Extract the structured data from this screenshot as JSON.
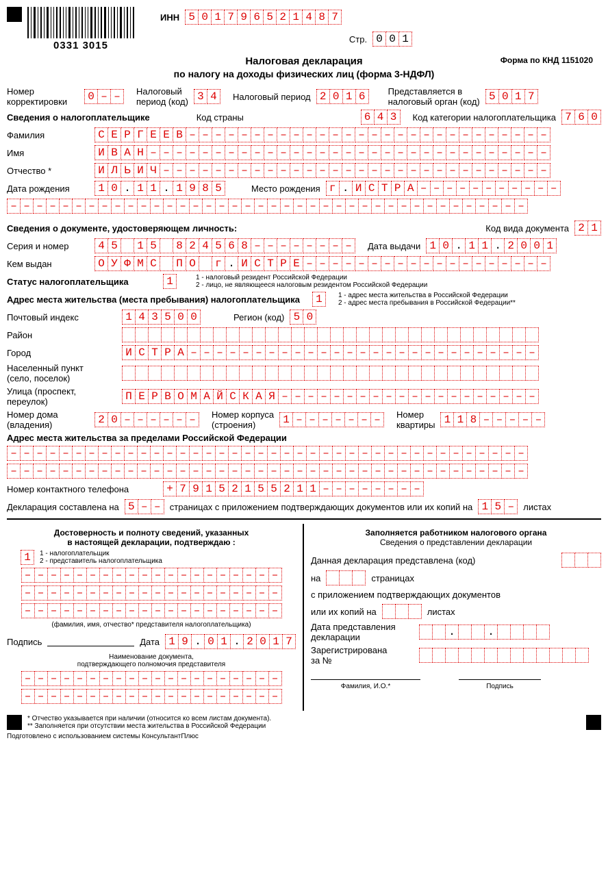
{
  "colors": {
    "ink": "#000000",
    "red": "#dd0000",
    "bg": "#ffffff"
  },
  "barcode_number": "0331 3015",
  "inn_label": "ИНН",
  "inn": [
    "5",
    "0",
    "1",
    "7",
    "9",
    "6",
    "5",
    "2",
    "1",
    "4",
    "8",
    "7"
  ],
  "page_label": "Стр.",
  "page": [
    "0",
    "0",
    "1"
  ],
  "knd": "Форма по КНД 1151020",
  "title1": "Налоговая декларация",
  "title2": "по налогу на доходы физических лиц (форма 3-НДФЛ)",
  "row1": {
    "corr_label": "Номер\nкорректировки",
    "corr": [
      "0",
      "–",
      "–"
    ],
    "period_code_label": "Налоговый\nпериод (код)",
    "period_code": [
      "3",
      "4"
    ],
    "period_label": "Налоговый период",
    "period": [
      "2",
      "0",
      "1",
      "6"
    ],
    "organ_label": "Представляется в\nналоговый орган (код)",
    "organ": [
      "5",
      "0",
      "1",
      "7"
    ]
  },
  "taxpayer_info_label": "Сведения о налогоплательщике",
  "country_code_label": "Код страны",
  "country_code": [
    "6",
    "4",
    "3"
  ],
  "category_label": "Код категории налогоплательщика",
  "category": [
    "7",
    "6",
    "0"
  ],
  "surname_label": "Фамилия",
  "surname": [
    "С",
    "Е",
    "Р",
    "Г",
    "Е",
    "Е",
    "В",
    "–",
    "–",
    "–",
    "–",
    "–",
    "–",
    "–",
    "–",
    "–",
    "–",
    "–",
    "–",
    "–",
    "–",
    "–",
    "–",
    "–",
    "–",
    "–",
    "–",
    "–",
    "–",
    "–",
    "–",
    "–",
    "–",
    "–",
    "–"
  ],
  "name_label": "Имя",
  "name": [
    "И",
    "В",
    "А",
    "Н",
    "–",
    "–",
    "–",
    "–",
    "–",
    "–",
    "–",
    "–",
    "–",
    "–",
    "–",
    "–",
    "–",
    "–",
    "–",
    "–",
    "–",
    "–",
    "–",
    "–",
    "–",
    "–",
    "–",
    "–",
    "–",
    "–",
    "–",
    "–",
    "–",
    "–",
    "–"
  ],
  "patr_label": "Отчество *",
  "patr": [
    "И",
    "Л",
    "Ь",
    "И",
    "Ч",
    "–",
    "–",
    "–",
    "–",
    "–",
    "–",
    "–",
    "–",
    "–",
    "–",
    "–",
    "–",
    "–",
    "–",
    "–",
    "–",
    "–",
    "–",
    "–",
    "–",
    "–",
    "–",
    "–",
    "–",
    "–",
    "–",
    "–",
    "–",
    "–",
    "–"
  ],
  "dob_label": "Дата рождения",
  "dob": [
    "1",
    "0",
    ".",
    "1",
    "1",
    ".",
    "1",
    "9",
    "8",
    "5"
  ],
  "pob_label": "Место рождения",
  "pob": [
    "г",
    ".",
    "И",
    "С",
    "Т",
    "Р",
    "А",
    "–",
    "–",
    "–",
    "–",
    "–",
    "–",
    "–",
    "–",
    "–",
    "–",
    "–"
  ],
  "pob2": [
    "–",
    "–",
    "–",
    "–",
    "–",
    "–",
    "–",
    "–",
    "–",
    "–",
    "–",
    "–",
    "–",
    "–",
    "–",
    "–",
    "–",
    "–",
    "–",
    "–",
    "–",
    "–",
    "–",
    "–",
    "–",
    "–",
    "–",
    "–",
    "–",
    "–",
    "–",
    "–",
    "–",
    "–",
    "–",
    "–",
    "–",
    "–",
    "–",
    "–"
  ],
  "doc_section_label": "Сведения о документе, удостоверяющем личность:",
  "doc_type_label": "Код вида документа",
  "doc_type": [
    "2",
    "1"
  ],
  "serial_label": "Серия и номер",
  "serial": [
    "4",
    "5",
    "",
    "1",
    "5",
    "",
    "8",
    "2",
    "4",
    "5",
    "6",
    "8",
    "–",
    "–",
    "–",
    "–",
    "–",
    "–",
    "–",
    "–"
  ],
  "issue_date_label": "Дата выдачи",
  "issue_date": [
    "1",
    "0",
    ".",
    "1",
    "1",
    ".",
    "2",
    "0",
    "0",
    "1"
  ],
  "issued_by_label": "Кем выдан",
  "issued_by": [
    "О",
    "У",
    "Ф",
    "М",
    "С",
    "",
    "П",
    "О",
    "",
    "г",
    ".",
    "И",
    "С",
    "Т",
    "Р",
    "Е",
    "–",
    "–",
    "–",
    "–",
    "–",
    "–",
    "–",
    "–",
    "–",
    "–",
    "–",
    "–",
    "–",
    "–",
    "–",
    "–",
    "–",
    "–",
    "–"
  ],
  "status_label": "Статус налогоплательщика",
  "status": [
    "1"
  ],
  "status_note1": "1 - налоговый резидент Российской Федерации",
  "status_note2": "2 - лицо, не являющееся налоговым резидентом Российской Федерации",
  "address_label": "Адрес места жительства (места пребывания) налогоплательщика",
  "address_type": [
    "1"
  ],
  "address_note1": "1 - адрес места жительства в Российской Федерации",
  "address_note2": "2 - адрес места пребывания в Российской Федерации**",
  "postal_label": "Почтовый индекс",
  "postal": [
    "1",
    "4",
    "3",
    "5",
    "0",
    "0"
  ],
  "region_label": "Регион  (код)",
  "region": [
    "5",
    "0"
  ],
  "district_label": "Район",
  "district": [
    "",
    "",
    "",
    "",
    "",
    "",
    "",
    "",
    "",
    "",
    "",
    "",
    "",
    "",
    "",
    "",
    "",
    "",
    "",
    "",
    "",
    "",
    "",
    "",
    "",
    "",
    "",
    "",
    "",
    "",
    "",
    ""
  ],
  "city_label": "Город",
  "city": [
    "И",
    "С",
    "Т",
    "Р",
    "А",
    "–",
    "–",
    "–",
    "–",
    "–",
    "–",
    "–",
    "–",
    "–",
    "–",
    "–",
    "–",
    "–",
    "–",
    "–",
    "–",
    "–",
    "–",
    "–",
    "–",
    "–",
    "–",
    "–",
    "–",
    "–",
    "–",
    "–"
  ],
  "settlement_label": "Населенный пункт\n(село, поселок)",
  "settlement": [
    "",
    "",
    "",
    "",
    "",
    "",
    "",
    "",
    "",
    "",
    "",
    "",
    "",
    "",
    "",
    "",
    "",
    "",
    "",
    "",
    "",
    "",
    "",
    "",
    "",
    "",
    "",
    "",
    "",
    "",
    "",
    ""
  ],
  "street_label": "Улица (проспект,\nпереулок)",
  "street": [
    "П",
    "Е",
    "Р",
    "В",
    "О",
    "М",
    "А",
    "Й",
    "С",
    "К",
    "А",
    "Я",
    "–",
    "–",
    "–",
    "–",
    "–",
    "–",
    "–",
    "–",
    "–",
    "–",
    "–",
    "–",
    "–",
    "–",
    "–",
    "–",
    "–",
    "–",
    "–",
    "–"
  ],
  "house_label": "Номер дома\n(владения)",
  "house": [
    "2",
    "0",
    "–",
    "–",
    "–",
    "–",
    "–",
    "–"
  ],
  "building_label": "Номер корпуса\n(строения)",
  "building": [
    "1",
    "–",
    "–",
    "–",
    "–",
    "–",
    "–",
    "–"
  ],
  "apt_label": "Номер\nквартиры",
  "apt": [
    "1",
    "1",
    "8",
    "–",
    "–",
    "–",
    "–",
    "–"
  ],
  "foreign_addr_label": "Адрес места жительства за пределами Российской Федерации",
  "foreign1": [
    "–",
    "–",
    "–",
    "–",
    "–",
    "–",
    "–",
    "–",
    "–",
    "–",
    "–",
    "–",
    "–",
    "–",
    "–",
    "–",
    "–",
    "–",
    "–",
    "–",
    "–",
    "–",
    "–",
    "–",
    "–",
    "–",
    "–",
    "–",
    "–",
    "–",
    "–",
    "–",
    "–",
    "–",
    "–",
    "–",
    "–",
    "–",
    "–",
    "–"
  ],
  "foreign2": [
    "–",
    "–",
    "–",
    "–",
    "–",
    "–",
    "–",
    "–",
    "–",
    "–",
    "–",
    "–",
    "–",
    "–",
    "–",
    "–",
    "–",
    "–",
    "–",
    "–",
    "–",
    "–",
    "–",
    "–",
    "–",
    "–",
    "–",
    "–",
    "–",
    "–",
    "–",
    "–",
    "–",
    "–",
    "–",
    "–",
    "–",
    "–",
    "–",
    "–"
  ],
  "phone_label": "Номер контактного телефона",
  "phone": [
    "+",
    "7",
    "9",
    "1",
    "5",
    "2",
    "1",
    "5",
    "5",
    "2",
    "1",
    "1",
    "–",
    "–",
    "–",
    "–",
    "–",
    "–",
    "–",
    "–"
  ],
  "decl_pages_label1": "Декларация составлена на",
  "decl_pages": [
    "5",
    "–",
    "–"
  ],
  "decl_pages_label2": "страницах с приложением подтверждающих документов или их копий на",
  "attach_pages": [
    "1",
    "5",
    "–"
  ],
  "decl_pages_label3": "листах",
  "left_col_title1": "Достоверность и полноту сведений, указанных",
  "left_col_title2": "в настоящей декларации, подтверждаю :",
  "confirm_type": [
    "1"
  ],
  "confirm_note1": "1 - налогоплательщик",
  "confirm_note2": "2 - представитель налогоплательщика",
  "rep_line1": [
    "–",
    "–",
    "–",
    "–",
    "–",
    "–",
    "–",
    "–",
    "–",
    "–",
    "–",
    "–",
    "–",
    "–",
    "–",
    "–",
    "–",
    "–",
    "–",
    "–"
  ],
  "rep_line2": [
    "–",
    "–",
    "–",
    "–",
    "–",
    "–",
    "–",
    "–",
    "–",
    "–",
    "–",
    "–",
    "–",
    "–",
    "–",
    "–",
    "–",
    "–",
    "–",
    "–"
  ],
  "rep_line3": [
    "–",
    "–",
    "–",
    "–",
    "–",
    "–",
    "–",
    "–",
    "–",
    "–",
    "–",
    "–",
    "–",
    "–",
    "–",
    "–",
    "–",
    "–",
    "–",
    "–"
  ],
  "rep_caption": "(фамилия, имя, отчество* представителя налогоплательщика)",
  "sign_label": "Подпись",
  "date_label": "Дата",
  "sign_date": [
    "1",
    "9",
    ".",
    "0",
    "1",
    ".",
    "2",
    "0",
    "1",
    "7"
  ],
  "doc_auth_label1": "Наименование документа,",
  "doc_auth_label2": "подтверждающего полномочия представителя",
  "doc_line1": [
    "–",
    "–",
    "–",
    "–",
    "–",
    "–",
    "–",
    "–",
    "–",
    "–",
    "–",
    "–",
    "–",
    "–",
    "–",
    "–",
    "–",
    "–",
    "–",
    "–"
  ],
  "doc_line2": [
    "–",
    "–",
    "–",
    "–",
    "–",
    "–",
    "–",
    "–",
    "–",
    "–",
    "–",
    "–",
    "–",
    "–",
    "–",
    "–",
    "–",
    "–",
    "–",
    "–"
  ],
  "right_col_title": "Заполняется работником налогового органа",
  "right_col_sub": "Сведения о представлении декларации",
  "r_submitted_label": "Данная декларация представлена  (код)",
  "r_on_label": "на",
  "r_pages_label": "страницах",
  "r_attach_label": "с приложением подтверждающих документов",
  "r_copies_label": "или их копий на",
  "r_sheets_label": "листах",
  "r_date_label": "Дата представления\nдекларации",
  "r_reg_label": "Зарегистрирована\nза №",
  "r_fio_label": "Фамилия, И.О.*",
  "r_sign_label": "Подпись",
  "footnote1": "* Отчество указывается при наличии (относится ко всем листам документа).",
  "footnote2": "** Заполняется при отсутствии места жительства в Российской Федерации",
  "prepared_by": "Подготовлено с использованием системы КонсультантПлюс"
}
